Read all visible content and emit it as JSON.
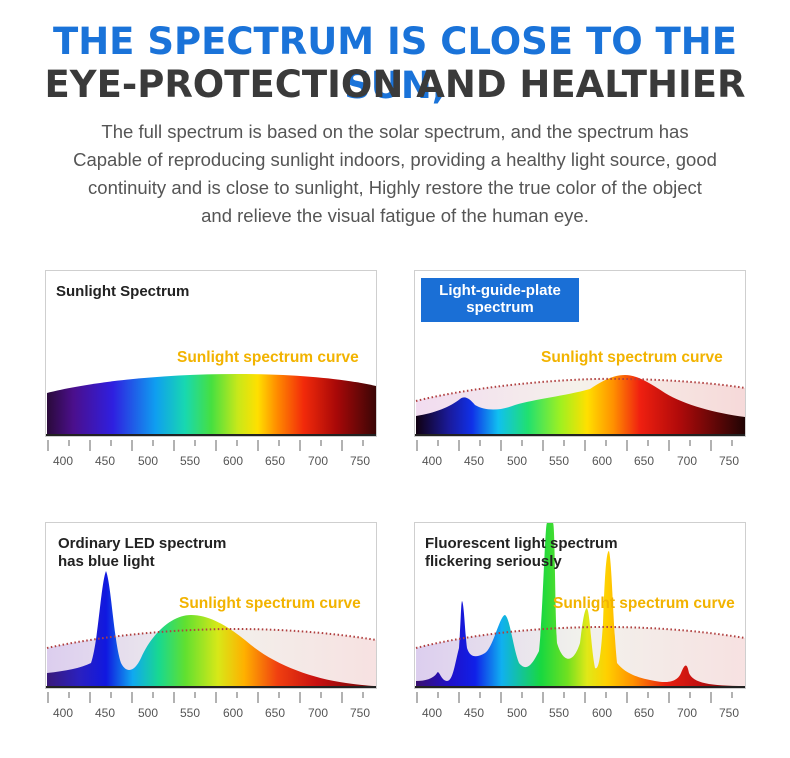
{
  "header": {
    "title_line1": "THE SPECTRUM IS CLOSE TO THE SUN,",
    "title_line2": "EYE-PROTECTION AND HEALTHIER",
    "description_lines": [
      "The full spectrum is based on the solar spectrum, and the spectrum has",
      "Capable of reproducing sunlight indoors, providing a healthy light source,  good",
      "continuity and is close to sunlight, Highly restore the true color of the object",
      "and relieve the visual fatigue of the human eye."
    ]
  },
  "panels": [
    {
      "label": "Sunlight Spectrum",
      "curve_label": "Sunlight spectrum curve"
    },
    {
      "label_line1": "Light-guide-plate",
      "label_line2": "spectrum",
      "curve_label": "Sunlight spectrum curve"
    },
    {
      "label_line1": "Ordinary LED spectrum",
      "label_line2": "has blue light",
      "curve_label": "Sunlight spectrum curve"
    },
    {
      "label_line1": "Fluorescent light spectrum",
      "label_line2": "flickering seriously",
      "curve_label": "Sunlight spectrum curve"
    }
  ],
  "axis_ticks": [
    "400",
    "450",
    "500",
    "550",
    "600",
    "650",
    "700",
    "750"
  ],
  "colors": {
    "title_blue": "#1a73d9",
    "title_dark": "#3a3a3a",
    "badge_blue": "#1a6fd6",
    "curve_label": "#f2b300",
    "sun_curve_dots": "#b04040"
  }
}
